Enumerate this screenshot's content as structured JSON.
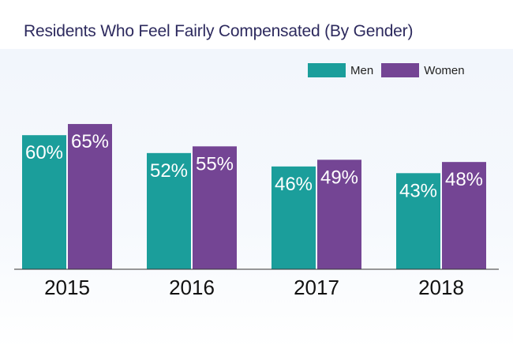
{
  "title": "Residents Who Feel Fairly Compensated (By Gender)",
  "colors": {
    "men": "#1b9e9b",
    "women": "#744594",
    "baseline": "#333333"
  },
  "chart_data": {
    "type": "bar",
    "title": "Residents Who Feel Fairly Compensated (By Gender)",
    "categories": [
      "2015",
      "2016",
      "2017",
      "2018"
    ],
    "series": [
      {
        "name": "Men",
        "values": [
          60,
          52,
          46,
          43
        ],
        "labels": [
          "60%",
          "52%",
          "46%",
          "43%"
        ]
      },
      {
        "name": "Women",
        "values": [
          65,
          55,
          49,
          48
        ],
        "labels": [
          "65%",
          "55%",
          "49%",
          "48%"
        ]
      }
    ],
    "ylim": [
      0,
      100
    ],
    "grid": false,
    "legend": "top-right"
  }
}
